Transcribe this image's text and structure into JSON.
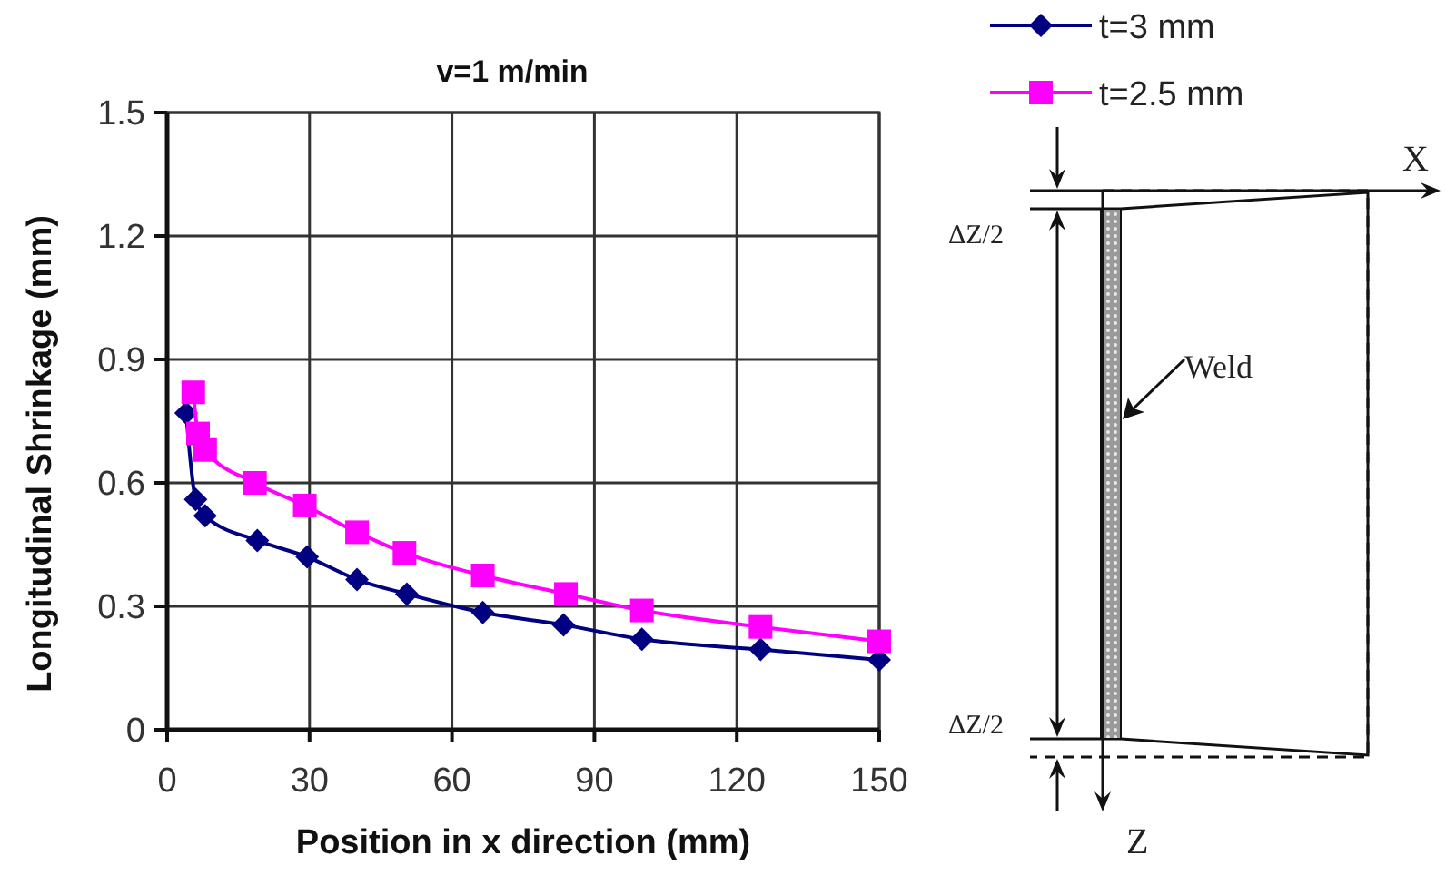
{
  "chart_data": {
    "type": "line",
    "title": "v=1 m/min",
    "xlabel": "Position in x direction (mm)",
    "ylabel": "Longitudinal Shrinkage (mm)",
    "xlim": [
      0,
      150
    ],
    "xticks": [
      0,
      30,
      60,
      90,
      120,
      150
    ],
    "ylim": [
      0,
      1.5
    ],
    "yticks": [
      0,
      0.3,
      0.6,
      0.9,
      1.2,
      1.5
    ],
    "grid": true,
    "legend": "top right",
    "series": [
      {
        "name": "t=3 mm",
        "color": "#000080",
        "marker": "diamond",
        "x": [
          4,
          6,
          8,
          19,
          29.5,
          40,
          50.5,
          66.5,
          83.5,
          100,
          125,
          150
        ],
        "values": [
          0.77,
          0.56,
          0.52,
          0.46,
          0.42,
          0.365,
          0.33,
          0.285,
          0.255,
          0.22,
          0.195,
          0.17
        ]
      },
      {
        "name": "t=2.5 mm",
        "color": "#ff00ff",
        "marker": "square",
        "x": [
          5.5,
          6.5,
          8,
          18.5,
          29,
          40,
          50,
          66.5,
          84,
          100,
          125,
          150
        ],
        "values": [
          0.82,
          0.72,
          0.68,
          0.6,
          0.545,
          0.48,
          0.43,
          0.375,
          0.33,
          0.29,
          0.25,
          0.215
        ]
      }
    ],
    "annotations": [
      "X",
      "ΔZ/2",
      "Weld",
      "ΔZ/2",
      "Z"
    ]
  }
}
